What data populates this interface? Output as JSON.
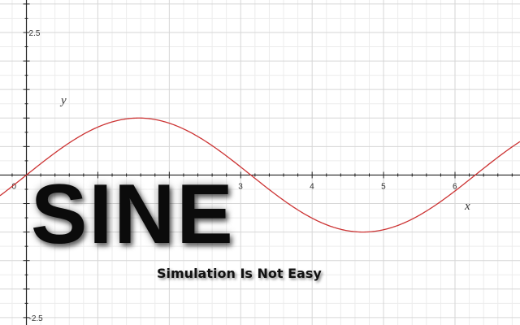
{
  "chart_data": {
    "type": "line",
    "function": "sin(x)",
    "title": "SINE",
    "subtitle": "Simulation Is Not Easy",
    "xlabel": "x",
    "ylabel": "y",
    "xlim": [
      -0.37,
      6.91
    ],
    "ylim": [
      -2.63,
      3.07
    ],
    "origin_label": "0",
    "x_tick_labels": [
      "3",
      "4",
      "5",
      "6"
    ],
    "y_tick_labels": [
      "2.5",
      "-2.5"
    ],
    "grid": true,
    "series": [
      {
        "color": "#cc3333",
        "x": [
          -0.37,
          0.0,
          0.5,
          1.0,
          1.5708,
          2.0,
          2.5,
          3.1416,
          3.5,
          4.0,
          4.7124,
          5.0,
          5.5,
          6.2832,
          6.91
        ],
        "y": [
          -0.36,
          0.0,
          0.48,
          0.84,
          1.0,
          0.91,
          0.6,
          0.0,
          -0.35,
          -0.76,
          -1.0,
          -0.96,
          -0.71,
          0.0,
          0.58
        ]
      }
    ],
    "colors": {
      "grid_major": "#d6d6d6",
      "grid_minor": "#ececec",
      "axis": "#222222",
      "curve": "#cc3333"
    }
  }
}
